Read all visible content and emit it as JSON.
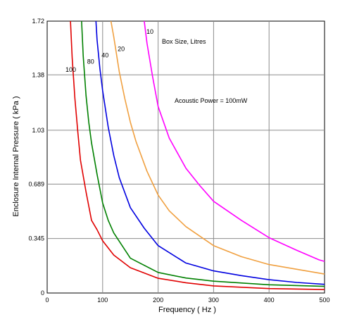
{
  "chart_data": {
    "type": "line",
    "title": "",
    "xlabel": "Frequency  ( Hz )",
    "ylabel": "Enclosure Internal Pressure  ( kPa )",
    "xlim": [
      0,
      500
    ],
    "ylim": [
      0,
      1.72
    ],
    "x_ticks": [
      0,
      100,
      200,
      300,
      400,
      500
    ],
    "x_tick_labels": [
      "0",
      "100",
      "200",
      "300",
      "400",
      "500"
    ],
    "y_ticks": [
      0,
      0.345,
      0.689,
      1.03,
      1.38,
      1.72
    ],
    "y_tick_labels": [
      "0",
      "0.345",
      "0.689",
      "1.03",
      "1.38",
      "1.72"
    ],
    "grid": true,
    "annotations": {
      "legend_title": "Box Size, Litres",
      "power_note": "Acoustic Power = 100mW"
    },
    "series": [
      {
        "name": "100",
        "color": "#e00000",
        "points": [
          [
            42,
            1.72
          ],
          [
            45,
            1.49
          ],
          [
            50,
            1.23
          ],
          [
            55,
            1.03
          ],
          [
            60,
            0.84
          ],
          [
            70,
            0.64
          ],
          [
            80,
            0.46
          ],
          [
            90,
            0.4
          ],
          [
            100,
            0.33
          ],
          [
            120,
            0.24
          ],
          [
            150,
            0.16
          ],
          [
            200,
            0.093
          ],
          [
            250,
            0.065
          ],
          [
            300,
            0.045
          ],
          [
            400,
            0.028
          ],
          [
            500,
            0.022
          ]
        ]
      },
      {
        "name": "80",
        "color": "#008000",
        "points": [
          [
            62,
            1.72
          ],
          [
            65,
            1.5
          ],
          [
            70,
            1.25
          ],
          [
            75,
            1.08
          ],
          [
            80,
            0.95
          ],
          [
            90,
            0.75
          ],
          [
            100,
            0.57
          ],
          [
            110,
            0.46
          ],
          [
            120,
            0.38
          ],
          [
            150,
            0.22
          ],
          [
            200,
            0.13
          ],
          [
            250,
            0.095
          ],
          [
            300,
            0.075
          ],
          [
            400,
            0.052
          ],
          [
            500,
            0.042
          ]
        ]
      },
      {
        "name": "40",
        "color": "#0000e0",
        "points": [
          [
            88,
            1.72
          ],
          [
            90,
            1.6
          ],
          [
            95,
            1.42
          ],
          [
            100,
            1.28
          ],
          [
            110,
            1.05
          ],
          [
            120,
            0.87
          ],
          [
            130,
            0.73
          ],
          [
            150,
            0.54
          ],
          [
            175,
            0.41
          ],
          [
            200,
            0.3
          ],
          [
            250,
            0.19
          ],
          [
            300,
            0.14
          ],
          [
            350,
            0.11
          ],
          [
            400,
            0.084
          ],
          [
            450,
            0.067
          ],
          [
            500,
            0.055
          ]
        ]
      },
      {
        "name": "20",
        "color": "#f0a040",
        "points": [
          [
            115,
            1.72
          ],
          [
            120,
            1.62
          ],
          [
            130,
            1.4
          ],
          [
            140,
            1.23
          ],
          [
            150,
            1.08
          ],
          [
            160,
            0.96
          ],
          [
            180,
            0.77
          ],
          [
            200,
            0.62
          ],
          [
            220,
            0.52
          ],
          [
            250,
            0.42
          ],
          [
            300,
            0.3
          ],
          [
            350,
            0.23
          ],
          [
            400,
            0.18
          ],
          [
            450,
            0.15
          ],
          [
            500,
            0.12
          ]
        ]
      },
      {
        "name": "10",
        "color": "#ff00ff",
        "points": [
          [
            175,
            1.72
          ],
          [
            180,
            1.58
          ],
          [
            190,
            1.37
          ],
          [
            200,
            1.18
          ],
          [
            220,
            0.98
          ],
          [
            250,
            0.79
          ],
          [
            275,
            0.68
          ],
          [
            300,
            0.58
          ],
          [
            350,
            0.46
          ],
          [
            400,
            0.35
          ],
          [
            450,
            0.27
          ],
          [
            490,
            0.21
          ],
          [
            500,
            0.2
          ]
        ]
      }
    ],
    "curve_labels": [
      {
        "text": "100",
        "x": 33,
        "y": 1.4
      },
      {
        "text": "80",
        "x": 72,
        "y": 1.45
      },
      {
        "text": "40",
        "x": 98,
        "y": 1.49
      },
      {
        "text": "20",
        "x": 127,
        "y": 1.53
      },
      {
        "text": "10",
        "x": 179,
        "y": 1.64
      }
    ]
  }
}
